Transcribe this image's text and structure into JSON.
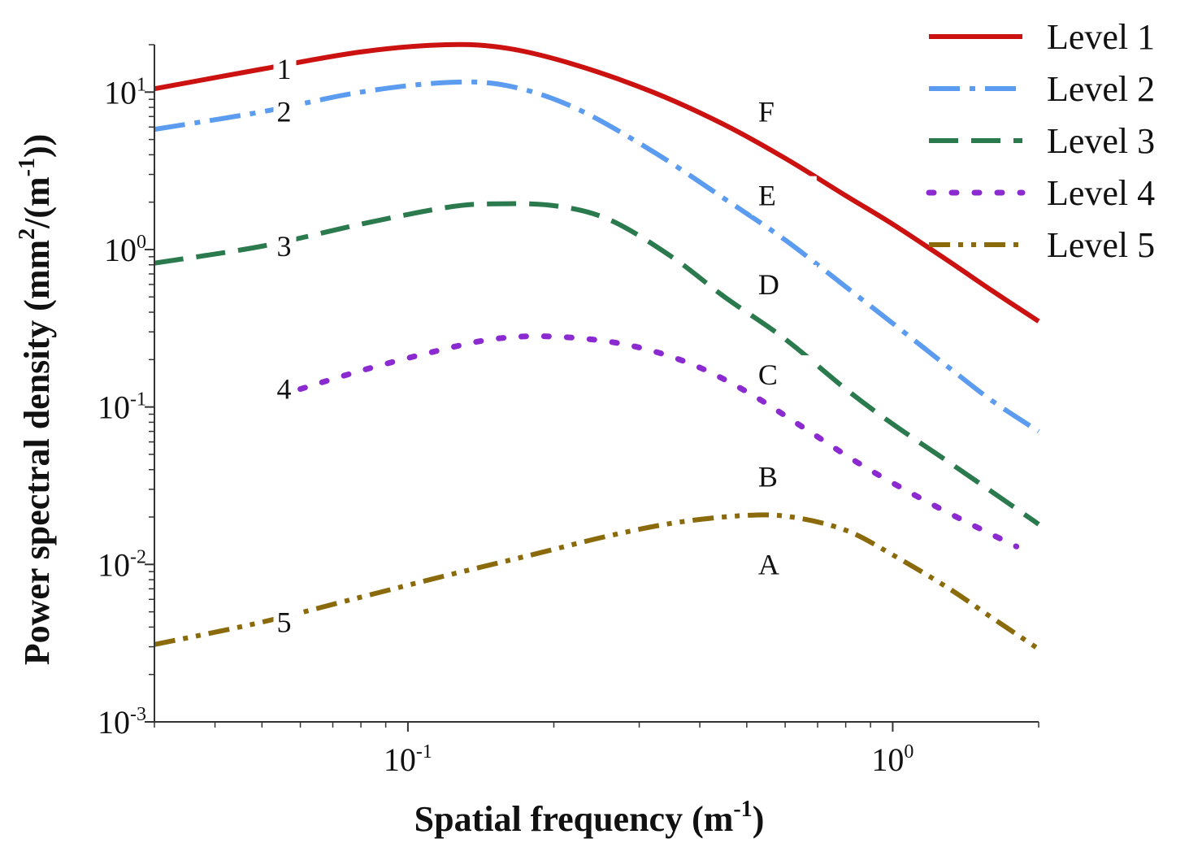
{
  "chart_data": {
    "type": "line",
    "xscale": "log",
    "yscale": "log",
    "xlabel": "Spatial frequency (m-1)",
    "xlabel_parts": {
      "main": "Spatial frequency (m",
      "sup": "-1",
      "end": ")"
    },
    "ylabel": "Power spectral density (mm2/(m-1))",
    "ylabel_parts": {
      "a": "Power spectral density (mm",
      "sup1": "2",
      "b": "/(m",
      "sup2": "-1",
      "c": "))"
    },
    "xlim": [
      0.03,
      2
    ],
    "ylim": [
      0.001,
      20
    ],
    "xticks": [
      {
        "value": 0.1,
        "base": "10",
        "exp": "-1"
      },
      {
        "value": 1,
        "base": "10",
        "exp": "0"
      }
    ],
    "yticks": [
      {
        "value": 0.001,
        "base": "10",
        "exp": "-3"
      },
      {
        "value": 0.01,
        "base": "10",
        "exp": "-2"
      },
      {
        "value": 0.1,
        "base": "10",
        "exp": "-1"
      },
      {
        "value": 1,
        "base": "10",
        "exp": "0"
      },
      {
        "value": 10,
        "base": "10",
        "exp": "1"
      }
    ],
    "series": [
      {
        "name": "Level 1",
        "label": "1",
        "color": "#cc1111",
        "dash": "solid",
        "x": [
          0.03,
          0.05,
          0.08,
          0.12,
          0.16,
          0.22,
          0.32,
          0.45,
          0.6,
          0.8,
          1.0,
          1.3,
          1.6,
          2.0
        ],
        "y": [
          10.5,
          14,
          18,
          20,
          19,
          15,
          10,
          6.2,
          3.8,
          2.2,
          1.45,
          0.85,
          0.55,
          0.35
        ]
      },
      {
        "name": "Level 2",
        "label": "2",
        "color": "#5b9bf0",
        "dash": "dashdot",
        "x": [
          0.03,
          0.05,
          0.08,
          0.12,
          0.16,
          0.22,
          0.32,
          0.45,
          0.6,
          0.8,
          1.0,
          1.3,
          1.6,
          2.0
        ],
        "y": [
          5.8,
          7.5,
          10,
          11.5,
          11,
          8,
          4.2,
          2.1,
          1.15,
          0.58,
          0.34,
          0.18,
          0.11,
          0.07
        ]
      },
      {
        "name": "Level 3",
        "label": "3",
        "color": "#2a7a4e",
        "dash": "dash",
        "x": [
          0.03,
          0.05,
          0.08,
          0.12,
          0.15,
          0.2,
          0.26,
          0.35,
          0.45,
          0.6,
          0.8,
          1.0,
          1.3,
          1.6,
          2.0
        ],
        "y": [
          0.82,
          1.05,
          1.45,
          1.85,
          1.95,
          1.9,
          1.55,
          0.9,
          0.5,
          0.27,
          0.13,
          0.078,
          0.045,
          0.029,
          0.018
        ]
      },
      {
        "name": "Level 4",
        "label": "4",
        "color": "#8a2ad0",
        "dash": "dot",
        "x": [
          0.06,
          0.08,
          0.11,
          0.15,
          0.2,
          0.28,
          0.38,
          0.5,
          0.65,
          0.85,
          1.1,
          1.4,
          1.8
        ],
        "y": [
          0.13,
          0.17,
          0.22,
          0.27,
          0.28,
          0.25,
          0.19,
          0.125,
          0.075,
          0.044,
          0.028,
          0.019,
          0.013
        ]
      },
      {
        "name": "Level 5",
        "label": "5",
        "color": "#8a6a0a",
        "dash": "dashdotdot",
        "x": [
          0.03,
          0.05,
          0.08,
          0.12,
          0.18,
          0.26,
          0.36,
          0.5,
          0.62,
          0.8,
          1.0,
          1.3,
          1.6,
          2.0
        ],
        "y": [
          0.0031,
          0.0043,
          0.0062,
          0.0085,
          0.0115,
          0.0152,
          0.0185,
          0.0205,
          0.02,
          0.0165,
          0.0115,
          0.0071,
          0.0046,
          0.0029
        ]
      }
    ],
    "annotations": [
      {
        "text": "F",
        "x": 0.5,
        "y": 7.5
      },
      {
        "text": "E",
        "x": 0.5,
        "y": 2.2
      },
      {
        "text": "D",
        "x": 0.5,
        "y": 0.6
      },
      {
        "text": "C",
        "x": 0.5,
        "y": 0.16
      },
      {
        "text": "B",
        "x": 0.5,
        "y": 0.036
      },
      {
        "text": "A",
        "x": 0.5,
        "y": 0.01
      }
    ],
    "legend": {
      "position": "top-right"
    }
  }
}
